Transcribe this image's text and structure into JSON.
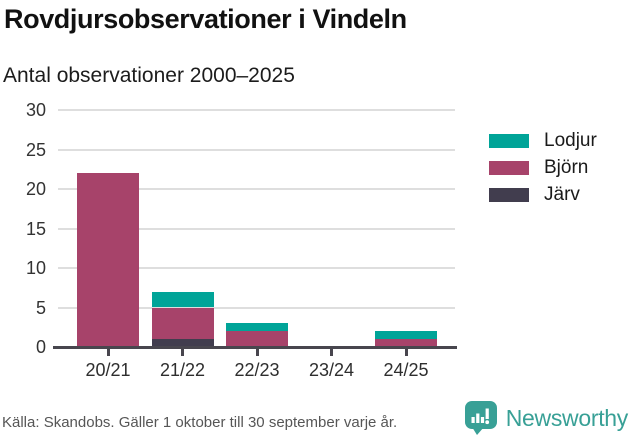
{
  "header": {
    "title": "Rovdjursobservationer i Vindeln",
    "subtitle": "Antal observationer 2000–2025"
  },
  "chart_data": {
    "type": "bar",
    "stacked": true,
    "title": "Rovdjursobservationer i Vindeln",
    "subtitle": "Antal observationer 2000–2025",
    "xlabel": "",
    "ylabel": "",
    "categories": [
      "20/21",
      "21/22",
      "22/23",
      "23/24",
      "24/25"
    ],
    "series": [
      {
        "name": "Järv",
        "color": "#413d4e",
        "values": [
          0,
          1,
          0,
          0,
          0
        ]
      },
      {
        "name": "Björn",
        "color": "#a7436a",
        "values": [
          22,
          4,
          2,
          0,
          1
        ]
      },
      {
        "name": "Lodjur",
        "color": "#00a498",
        "values": [
          0,
          2,
          1,
          0,
          1
        ]
      }
    ],
    "stack_order_bottom_to_top": [
      "Järv",
      "Björn",
      "Lodjur"
    ],
    "totals": [
      22,
      7,
      3,
      0,
      2
    ],
    "yticks": [
      0,
      5,
      10,
      15,
      20,
      25,
      30
    ],
    "ylim": [
      0,
      30
    ],
    "grid": true,
    "legend_position": "right",
    "legend_order": [
      "Lodjur",
      "Björn",
      "Järv"
    ]
  },
  "colors": {
    "gridline": "#dedede",
    "axis": "#48464e",
    "brand_teal": "#38a096"
  },
  "footer": {
    "source": "Källa: Skandobs. Gäller 1 oktober till 30 september varje år.",
    "brand": "Newsworthy"
  }
}
